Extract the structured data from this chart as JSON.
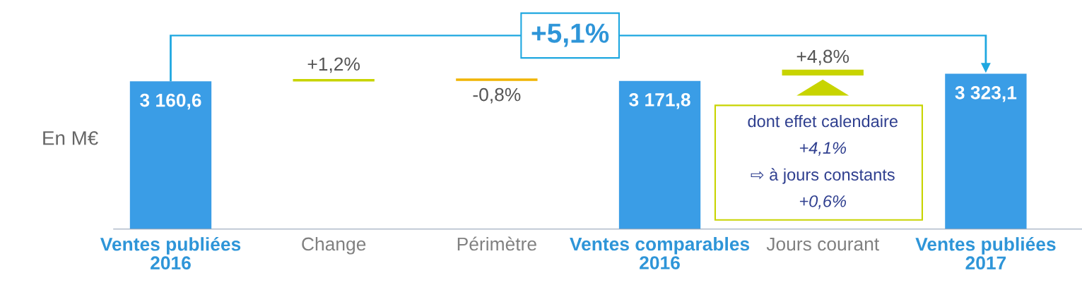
{
  "chart_data": {
    "type": "bar",
    "ylabel": "En M€",
    "categories": [
      "Ventes publiées\n2016",
      "Change",
      "Périmètre",
      "Ventes comparables\n2016",
      "Jours courant",
      "Ventes publiées\n2017"
    ],
    "values": [
      3160.6,
      null,
      null,
      3171.8,
      null,
      3323.1
    ],
    "color": "#3a9de6",
    "value_labels": [
      "3 160,6",
      null,
      null,
      "3 171,8",
      null,
      "3 323,1"
    ],
    "annotations": [
      "+5,1%",
      "+1,2%",
      "-0,8%",
      "+4,8%",
      "dont effet calendaire",
      "+4,1%",
      "⇨ à jours constants",
      "+0,6%"
    ],
    "grid": false,
    "legend": false
  }
}
